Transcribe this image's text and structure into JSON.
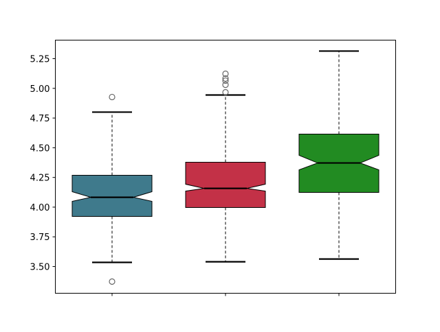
{
  "chart_data": {
    "type": "box",
    "notched": true,
    "title": "",
    "xlabel": "",
    "ylabel": "",
    "xlim": [
      0.5,
      3.5
    ],
    "ylim": [
      3.275,
      5.406
    ],
    "grid": false,
    "yticks": [
      "3.50",
      "3.75",
      "4.00",
      "4.25",
      "4.50",
      "4.75",
      "5.00",
      "5.25"
    ],
    "xtick_labels": [
      "",
      "",
      ""
    ],
    "boxes": [
      {
        "color": "#3f7a8c",
        "whisker_low": 3.535,
        "q1": 3.922,
        "notch_low": 4.049,
        "median": 4.083,
        "notch_high": 4.13,
        "q3": 4.268,
        "whisker_high": 4.8,
        "outliers": [
          4.927,
          3.373
        ]
      },
      {
        "color": "#c33147",
        "whisker_low": 3.54,
        "q1": 3.997,
        "notch_low": 4.135,
        "median": 4.158,
        "notch_high": 4.193,
        "q3": 4.378,
        "whisker_high": 4.944,
        "outliers": [
          4.967,
          5.03,
          5.065,
          5.083,
          5.123
        ]
      },
      {
        "color": "#228b22",
        "whisker_low": 3.563,
        "q1": 4.124,
        "notch_low": 4.314,
        "median": 4.372,
        "notch_high": 4.436,
        "q3": 4.615,
        "whisker_high": 5.314,
        "outliers": []
      }
    ]
  }
}
